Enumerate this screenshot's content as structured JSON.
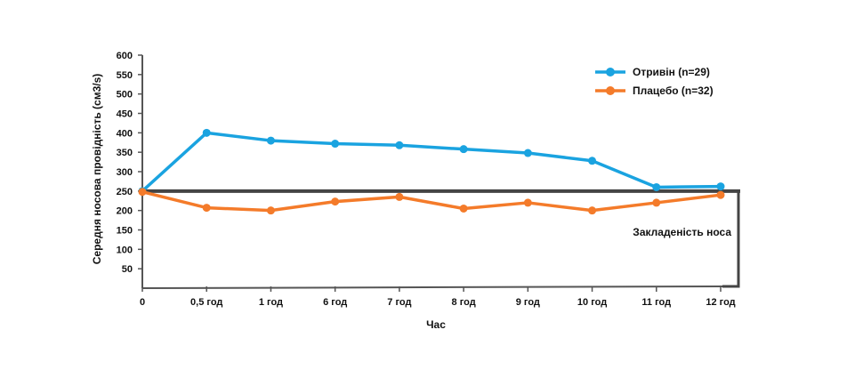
{
  "chart_data": {
    "type": "line",
    "title": "",
    "xlabel": "Час",
    "ylabel": "Середня носова провідність (см3/s)",
    "categories": [
      "0",
      "0,5 год",
      "1 год",
      "6 год",
      "7 год",
      "8 год",
      "9 год",
      "10 год",
      "11 год",
      "12 год"
    ],
    "y_ticks": [
      "50",
      "100",
      "150",
      "200",
      "250",
      "300",
      "350",
      "400",
      "450",
      "500",
      "550",
      "600"
    ],
    "ylim": [
      0,
      600
    ],
    "series": [
      {
        "name": "Отривін (n=29)",
        "color": "#1aa3e0",
        "values": [
          250,
          400,
          380,
          372,
          368,
          358,
          348,
          328,
          260,
          262
        ]
      },
      {
        "name": "Плацебо (n=32)",
        "color": "#f47b2a",
        "values": [
          248,
          207,
          200,
          223,
          235,
          205,
          220,
          200,
          220,
          240
        ]
      }
    ],
    "reference_line": {
      "value": 250,
      "color": "#444444"
    },
    "annotation": "Закладеність носа",
    "legend_position": "top-right",
    "grid": false
  }
}
